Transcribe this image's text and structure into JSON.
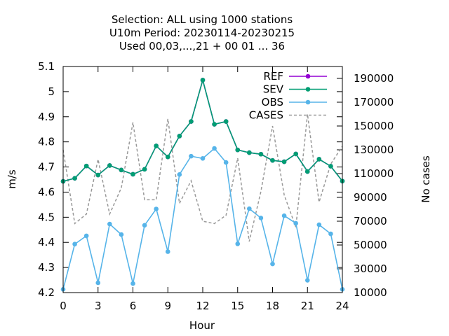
{
  "chart_data": {
    "type": "line",
    "title_lines": [
      "Selection: ALL using  1000 stations",
      "U10m   Period: 20230114-20230215",
      "Used  00,03,...,21  + 00 01 ... 36"
    ],
    "xlabel": "Hour",
    "ylabel": "m/s",
    "y2label": "No cases",
    "xlim": [
      0,
      24
    ],
    "ylim": [
      4.2,
      5.1
    ],
    "y2lim": [
      10000,
      200000
    ],
    "xticks": [
      "0",
      "3",
      "6",
      "9",
      "12",
      "15",
      "18",
      "21",
      "24"
    ],
    "yticks": [
      "4.2",
      "4.3",
      "4.4",
      "4.5",
      "4.6",
      "4.7",
      "4.8",
      "4.9",
      "5",
      "5.1"
    ],
    "y2ticks": [
      "10000",
      "30000",
      "50000",
      "70000",
      "90000",
      "110000",
      "130000",
      "150000",
      "170000",
      "190000"
    ],
    "grid": false,
    "legend_position": "top-right",
    "x": [
      0,
      1,
      2,
      3,
      4,
      5,
      6,
      7,
      8,
      9,
      10,
      11,
      12,
      13,
      14,
      15,
      16,
      17,
      18,
      19,
      20,
      21,
      22,
      23,
      24
    ],
    "series": [
      {
        "name": "REF",
        "color": "#9400d3",
        "style": "line-points",
        "axis": "y1",
        "values": [
          4.643,
          4.655,
          4.704,
          4.668,
          4.706,
          4.688,
          4.671,
          4.691,
          4.784,
          4.74,
          4.823,
          4.881,
          5.046,
          4.87,
          4.881,
          4.768,
          4.757,
          4.751,
          4.726,
          4.721,
          4.752,
          4.682,
          4.731,
          4.703,
          4.644
        ]
      },
      {
        "name": "SEV",
        "color": "#009e73",
        "style": "line-points",
        "axis": "y1",
        "values": [
          4.643,
          4.655,
          4.704,
          4.668,
          4.706,
          4.688,
          4.671,
          4.691,
          4.784,
          4.74,
          4.823,
          4.881,
          5.046,
          4.87,
          4.881,
          4.768,
          4.757,
          4.751,
          4.726,
          4.721,
          4.752,
          4.682,
          4.731,
          4.703,
          4.644
        ]
      },
      {
        "name": "OBS",
        "color": "#56b4e9",
        "style": "line-points",
        "axis": "y1",
        "values": [
          4.213,
          4.393,
          4.426,
          4.239,
          4.473,
          4.431,
          4.236,
          4.468,
          4.533,
          4.363,
          4.67,
          4.743,
          4.734,
          4.774,
          4.718,
          4.394,
          4.534,
          4.497,
          4.314,
          4.506,
          4.476,
          4.249,
          4.47,
          4.434,
          4.213
        ]
      },
      {
        "name": "CASES",
        "color": "#999999",
        "style": "dashed",
        "axis": "y2",
        "values": [
          130000,
          68000,
          76000,
          122000,
          76000,
          98000,
          153000,
          88000,
          88000,
          156000,
          85000,
          104000,
          70000,
          68000,
          75000,
          123000,
          53000,
          95000,
          150000,
          92000,
          65000,
          160000,
          86000,
          118000,
          133000
        ]
      }
    ]
  }
}
